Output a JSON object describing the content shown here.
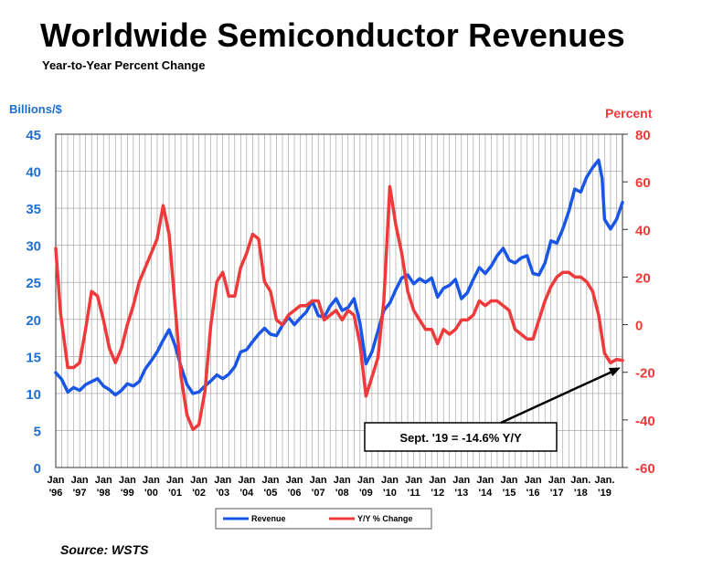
{
  "title": "Worldwide Semiconductor Revenues",
  "subtitle": "Year-to-Year Percent Change",
  "source": "Source: WSTS",
  "chart_data": {
    "type": "line",
    "y_left_label": "Billions/$",
    "y_right_label": "Percent",
    "y_left_range": [
      0,
      45
    ],
    "y_right_range": [
      -60,
      80
    ],
    "y_left_ticks": [
      0,
      5,
      10,
      15,
      20,
      25,
      30,
      35,
      40,
      45
    ],
    "y_right_ticks": [
      -60,
      -40,
      -20,
      0,
      20,
      40,
      60,
      80
    ],
    "grid": true,
    "legend_position": "bottom",
    "x_tick_labels": [
      [
        "Jan",
        "'96"
      ],
      [
        "Jan",
        "'97"
      ],
      [
        "Jan",
        "'98"
      ],
      [
        "Jan",
        "'99"
      ],
      [
        "Jan",
        "'00"
      ],
      [
        "Jan",
        "'01"
      ],
      [
        "Jan",
        "'02"
      ],
      [
        "Jan",
        "'03"
      ],
      [
        "Jan",
        "'04"
      ],
      [
        "Jan",
        "'05"
      ],
      [
        "Jan",
        "'06"
      ],
      [
        "Jan",
        "'07"
      ],
      [
        "Jan",
        "'08"
      ],
      [
        "Jan",
        "'09"
      ],
      [
        "Jan",
        "'10"
      ],
      [
        "Jan",
        "'11"
      ],
      [
        "Jan",
        "'12"
      ],
      [
        "Jan",
        "'13"
      ],
      [
        "Jan",
        "'14"
      ],
      [
        "Jan",
        "'15"
      ],
      [
        "Jan",
        "'16"
      ],
      [
        "Jan",
        "'17"
      ],
      [
        "Jan.",
        "'18"
      ],
      [
        "Jan.",
        "'19"
      ]
    ],
    "x_range": [
      1996.0,
      2019.75
    ],
    "series": [
      {
        "name": "Revenue",
        "axis": "left",
        "color": "#1a56e6",
        "points": [
          [
            1996.0,
            12.8
          ],
          [
            1996.25,
            11.9
          ],
          [
            1996.5,
            10.2
          ],
          [
            1996.75,
            10.8
          ],
          [
            1997.0,
            10.4
          ],
          [
            1997.25,
            11.2
          ],
          [
            1997.5,
            11.6
          ],
          [
            1997.75,
            12.0
          ],
          [
            1998.0,
            11.0
          ],
          [
            1998.25,
            10.5
          ],
          [
            1998.5,
            9.8
          ],
          [
            1998.75,
            10.4
          ],
          [
            1999.0,
            11.3
          ],
          [
            1999.25,
            11.0
          ],
          [
            1999.5,
            11.6
          ],
          [
            1999.75,
            13.3
          ],
          [
            2000.0,
            14.4
          ],
          [
            2000.25,
            15.6
          ],
          [
            2000.5,
            17.2
          ],
          [
            2000.75,
            18.6
          ],
          [
            2001.0,
            16.5
          ],
          [
            2001.25,
            13.6
          ],
          [
            2001.5,
            11.2
          ],
          [
            2001.75,
            10.0
          ],
          [
            2002.0,
            10.2
          ],
          [
            2002.25,
            11.0
          ],
          [
            2002.5,
            11.7
          ],
          [
            2002.75,
            12.5
          ],
          [
            2003.0,
            12.0
          ],
          [
            2003.25,
            12.6
          ],
          [
            2003.5,
            13.6
          ],
          [
            2003.75,
            15.6
          ],
          [
            2004.0,
            15.9
          ],
          [
            2004.25,
            17.0
          ],
          [
            2004.5,
            18.0
          ],
          [
            2004.75,
            18.8
          ],
          [
            2005.0,
            18.0
          ],
          [
            2005.25,
            17.8
          ],
          [
            2005.5,
            19.2
          ],
          [
            2005.75,
            20.3
          ],
          [
            2006.0,
            19.3
          ],
          [
            2006.25,
            20.2
          ],
          [
            2006.5,
            21.0
          ],
          [
            2006.75,
            22.5
          ],
          [
            2007.0,
            20.5
          ],
          [
            2007.25,
            20.3
          ],
          [
            2007.5,
            21.8
          ],
          [
            2007.75,
            22.8
          ],
          [
            2008.0,
            21.2
          ],
          [
            2008.25,
            21.6
          ],
          [
            2008.5,
            22.8
          ],
          [
            2008.75,
            19.5
          ],
          [
            2009.0,
            14.0
          ],
          [
            2009.25,
            15.6
          ],
          [
            2009.5,
            18.4
          ],
          [
            2009.75,
            21.2
          ],
          [
            2010.0,
            22.2
          ],
          [
            2010.25,
            24.0
          ],
          [
            2010.5,
            25.6
          ],
          [
            2010.75,
            26.0
          ],
          [
            2011.0,
            24.8
          ],
          [
            2011.25,
            25.5
          ],
          [
            2011.5,
            25.0
          ],
          [
            2011.75,
            25.6
          ],
          [
            2012.0,
            23.0
          ],
          [
            2012.25,
            24.2
          ],
          [
            2012.5,
            24.6
          ],
          [
            2012.75,
            25.4
          ],
          [
            2013.0,
            22.8
          ],
          [
            2013.25,
            23.6
          ],
          [
            2013.5,
            25.4
          ],
          [
            2013.75,
            27.0
          ],
          [
            2014.0,
            26.2
          ],
          [
            2014.25,
            27.2
          ],
          [
            2014.5,
            28.6
          ],
          [
            2014.75,
            29.6
          ],
          [
            2015.0,
            28.0
          ],
          [
            2015.25,
            27.6
          ],
          [
            2015.5,
            28.3
          ],
          [
            2015.75,
            28.6
          ],
          [
            2016.0,
            26.2
          ],
          [
            2016.25,
            26.0
          ],
          [
            2016.5,
            27.6
          ],
          [
            2016.75,
            30.6
          ],
          [
            2017.0,
            30.3
          ],
          [
            2017.25,
            32.2
          ],
          [
            2017.5,
            34.6
          ],
          [
            2017.75,
            37.6
          ],
          [
            2018.0,
            37.2
          ],
          [
            2018.25,
            39.2
          ],
          [
            2018.5,
            40.5
          ],
          [
            2018.75,
            41.5
          ],
          [
            2018.9,
            39.0
          ],
          [
            2019.0,
            33.5
          ],
          [
            2019.25,
            32.2
          ],
          [
            2019.5,
            33.5
          ],
          [
            2019.75,
            35.8
          ]
        ]
      },
      {
        "name": "Y/Y % Change",
        "axis": "right",
        "color": "#ee3a3a",
        "points": [
          [
            1996.0,
            32
          ],
          [
            1996.2,
            5
          ],
          [
            1996.5,
            -18
          ],
          [
            1996.75,
            -18
          ],
          [
            1997.0,
            -16
          ],
          [
            1997.25,
            -2
          ],
          [
            1997.5,
            14
          ],
          [
            1997.75,
            12
          ],
          [
            1998.0,
            2
          ],
          [
            1998.25,
            -10
          ],
          [
            1998.5,
            -16
          ],
          [
            1998.75,
            -10
          ],
          [
            1999.0,
            0
          ],
          [
            1999.25,
            8
          ],
          [
            1999.5,
            18
          ],
          [
            1999.75,
            24
          ],
          [
            2000.0,
            30
          ],
          [
            2000.25,
            36
          ],
          [
            2000.5,
            50
          ],
          [
            2000.75,
            38
          ],
          [
            2001.0,
            8
          ],
          [
            2001.25,
            -22
          ],
          [
            2001.5,
            -38
          ],
          [
            2001.75,
            -44
          ],
          [
            2002.0,
            -42
          ],
          [
            2002.25,
            -28
          ],
          [
            2002.5,
            0
          ],
          [
            2002.75,
            18
          ],
          [
            2003.0,
            22
          ],
          [
            2003.25,
            12
          ],
          [
            2003.5,
            12
          ],
          [
            2003.75,
            24
          ],
          [
            2004.0,
            30
          ],
          [
            2004.25,
            38
          ],
          [
            2004.5,
            36
          ],
          [
            2004.75,
            18
          ],
          [
            2005.0,
            14
          ],
          [
            2005.25,
            2
          ],
          [
            2005.5,
            0
          ],
          [
            2005.75,
            4
          ],
          [
            2006.0,
            6
          ],
          [
            2006.25,
            8
          ],
          [
            2006.5,
            8
          ],
          [
            2006.75,
            10
          ],
          [
            2007.0,
            10
          ],
          [
            2007.25,
            2
          ],
          [
            2007.5,
            4
          ],
          [
            2007.75,
            6
          ],
          [
            2008.0,
            2
          ],
          [
            2008.25,
            6
          ],
          [
            2008.5,
            4
          ],
          [
            2008.75,
            -8
          ],
          [
            2009.0,
            -30
          ],
          [
            2009.25,
            -22
          ],
          [
            2009.5,
            -14
          ],
          [
            2009.75,
            10
          ],
          [
            2010.0,
            58
          ],
          [
            2010.25,
            42
          ],
          [
            2010.5,
            30
          ],
          [
            2010.75,
            14
          ],
          [
            2011.0,
            6
          ],
          [
            2011.25,
            2
          ],
          [
            2011.5,
            -2
          ],
          [
            2011.75,
            -2
          ],
          [
            2012.0,
            -8
          ],
          [
            2012.25,
            -2
          ],
          [
            2012.5,
            -4
          ],
          [
            2012.75,
            -2
          ],
          [
            2013.0,
            2
          ],
          [
            2013.25,
            2
          ],
          [
            2013.5,
            4
          ],
          [
            2013.75,
            10
          ],
          [
            2014.0,
            8
          ],
          [
            2014.25,
            10
          ],
          [
            2014.5,
            10
          ],
          [
            2014.75,
            8
          ],
          [
            2015.0,
            6
          ],
          [
            2015.25,
            -2
          ],
          [
            2015.5,
            -4
          ],
          [
            2015.75,
            -6
          ],
          [
            2016.0,
            -6
          ],
          [
            2016.25,
            2
          ],
          [
            2016.5,
            10
          ],
          [
            2016.75,
            16
          ],
          [
            2017.0,
            20
          ],
          [
            2017.25,
            22
          ],
          [
            2017.5,
            22
          ],
          [
            2017.75,
            20
          ],
          [
            2018.0,
            20
          ],
          [
            2018.25,
            18
          ],
          [
            2018.5,
            14
          ],
          [
            2018.75,
            4
          ],
          [
            2019.0,
            -12
          ],
          [
            2019.25,
            -16
          ],
          [
            2019.5,
            -14.6
          ],
          [
            2019.75,
            -15
          ]
        ]
      }
    ],
    "annotation": {
      "text": "Sept. '19 = -14.6% Y/Y",
      "target_x": 2019.67,
      "target_y_right": -18
    }
  }
}
